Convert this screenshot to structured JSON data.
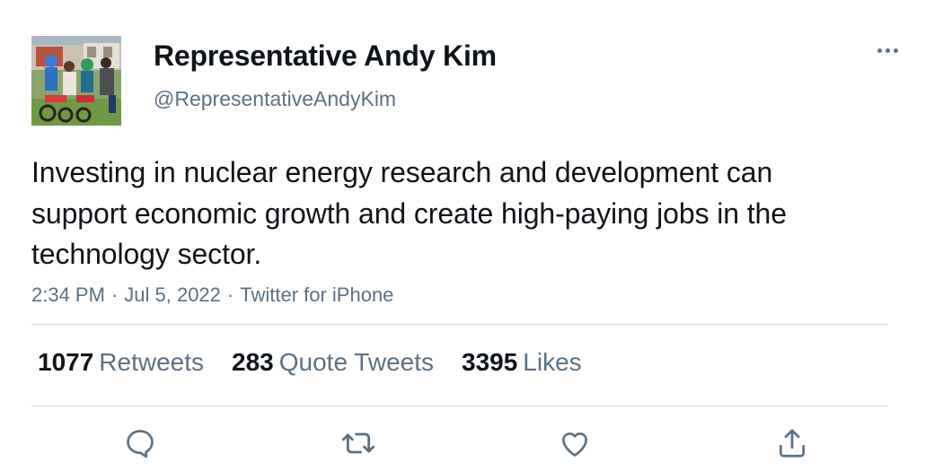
{
  "tweet": {
    "display_name": "Representative Andy Kim",
    "handle": "@RepresentativeAndyKim",
    "avatar_icon": "profile-photo",
    "text": "Investing in nuclear energy research and development can support economic growth and create high-paying jobs in the technology sector.",
    "time": "2:34 PM",
    "date": "Jul 5, 2022",
    "source": "Twitter for iPhone",
    "separator": "·"
  },
  "stats": {
    "retweets_count": "1077",
    "retweets_label": "Retweets",
    "quotes_count": "283",
    "quotes_label": "Quote Tweets",
    "likes_count": "3395",
    "likes_label": "Likes"
  },
  "actions": {
    "reply_icon": "reply-icon",
    "retweet_icon": "retweet-icon",
    "like_icon": "heart-icon",
    "share_icon": "share-icon"
  },
  "colors": {
    "primary_text": "#0f1419",
    "secondary_text": "#5b7083",
    "divider": "#cfd9de"
  }
}
